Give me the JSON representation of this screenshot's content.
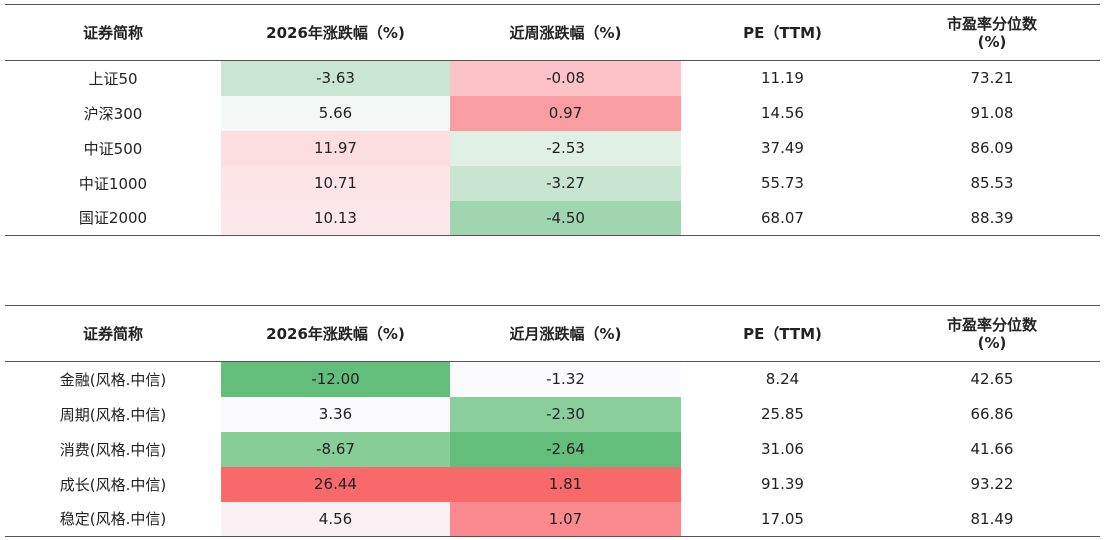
{
  "table1": {
    "headers": [
      "证券简称",
      "2026年涨跌幅（%)",
      "近周涨跌幅（%)",
      "PE（TTM)",
      "市盈率分位数\n(%)"
    ],
    "rows": [
      [
        "上证50",
        "-3.63",
        "-0.08",
        "11.19",
        "73.21"
      ],
      [
        "沪深300",
        "5.66",
        "0.97",
        "14.56",
        "91.08"
      ],
      [
        "中证500",
        "11.97",
        "-2.53",
        "37.49",
        "86.09"
      ],
      [
        "中证1000",
        "10.71",
        "-3.27",
        "55.73",
        "85.53"
      ],
      [
        "国证2000",
        "10.13",
        "-4.50",
        "68.07",
        "88.39"
      ]
    ],
    "cell_colors": [
      [
        "#c9e6d2",
        "#fbc3c7"
      ],
      [
        "#f3f8f6",
        "#fa9da3"
      ],
      [
        "#fcdde0",
        "#e0f0e5"
      ],
      [
        "#fce4e7",
        "#c7e5d0"
      ],
      [
        "#fce7ea",
        "#a0d6af"
      ]
    ]
  },
  "table2": {
    "headers": [
      "证券简称",
      "2026年涨跌幅（%)",
      "近月涨跌幅（%)",
      "PE（TTM)",
      "市盈率分位数\n(%)"
    ],
    "rows": [
      [
        "金融(风格.中信)",
        "-12.00",
        "-1.32",
        "8.24",
        "42.65"
      ],
      [
        "周期(风格.中信)",
        "3.36",
        "-2.30",
        "25.85",
        "66.86"
      ],
      [
        "消费(风格.中信)",
        "-8.67",
        "-2.64",
        "31.06",
        "41.66"
      ],
      [
        "成长(风格.中信)",
        "26.44",
        "1.81",
        "91.39",
        "93.22"
      ],
      [
        "稳定(风格.中信)",
        "4.56",
        "1.07",
        "17.05",
        "81.49"
      ]
    ],
    "cell_colors": [
      [
        "#63be7b",
        "#fbfbfd"
      ],
      [
        "#fafafd",
        "#8acf9b"
      ],
      [
        "#87cd98",
        "#63be7b"
      ],
      [
        "#f8696b",
        "#f8696b"
      ],
      [
        "#fbf0f3",
        "#fa8a8e"
      ]
    ]
  }
}
